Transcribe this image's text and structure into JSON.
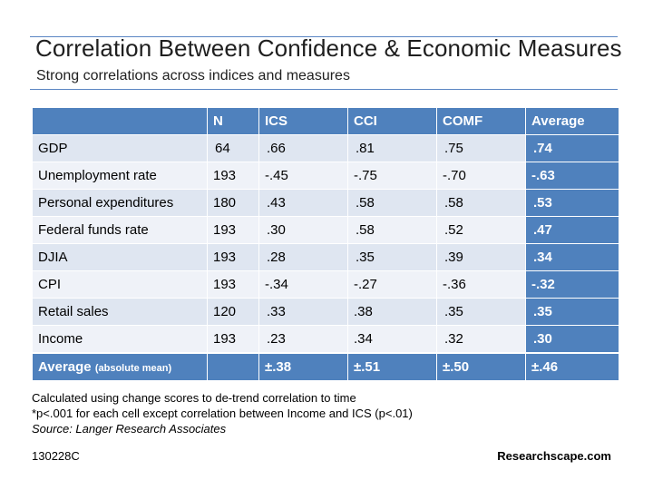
{
  "slide": {
    "title": "Correlation Between Confidence & Economic Measures",
    "subtitle": "Strong correlations across indices and measures"
  },
  "table": {
    "headers": [
      "",
      "N",
      "ICS",
      "CCI",
      "COMF",
      "Average"
    ],
    "rows": [
      {
        "label": "GDP",
        "n": "64",
        "ics": ".66",
        "cci": ".81",
        "comf": ".75",
        "avg": ".74"
      },
      {
        "label": "Unemployment rate",
        "n": "193",
        "ics": "-.45",
        "cci": "-.75",
        "comf": "-.70",
        "avg": "-.63"
      },
      {
        "label": "Personal expenditures",
        "n": "180",
        "ics": ".43",
        "cci": ".58",
        "comf": ".58",
        "avg": ".53"
      },
      {
        "label": "Federal funds rate",
        "n": "193",
        "ics": ".30",
        "cci": ".58",
        "comf": ".52",
        "avg": ".47"
      },
      {
        "label": "DJIA",
        "n": "193",
        "ics": ".28",
        "cci": ".35",
        "comf": ".39",
        "avg": ".34"
      },
      {
        "label": "CPI",
        "n": "193",
        "ics": "-.34",
        "cci": "-.27",
        "comf": "-.36",
        "avg": "-.32"
      },
      {
        "label": "Retail sales",
        "n": "120",
        "ics": ".33",
        "cci": ".38",
        "comf": ".35",
        "avg": ".35"
      },
      {
        "label": "Income",
        "n": "193",
        "ics": ".23",
        "cci": ".34",
        "comf": ".32",
        "avg": ".30"
      }
    ],
    "footer": {
      "label": "Average",
      "label_note": "(absolute mean)",
      "n": "",
      "ics": "±.38",
      "cci": "±.51",
      "comf": "±.50",
      "avg": "±.46"
    }
  },
  "notes": {
    "line1": "Calculated using change scores to de-trend correlation to time",
    "line2": "*p<.001 for each cell except correlation between Income and ICS (p<.01)",
    "source": "Source: Langer Research Associates"
  },
  "footer": {
    "code": "130228C",
    "brand": "Researchscape.com"
  },
  "colors": {
    "header_blue": "#4f81bd",
    "row_odd": "#dfe6f1",
    "row_even": "#eff2f8",
    "rule": "#5b86c3"
  }
}
